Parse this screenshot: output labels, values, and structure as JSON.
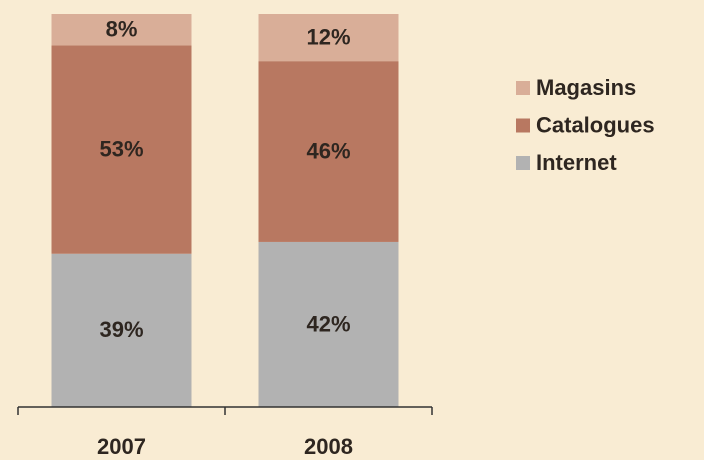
{
  "chart_data": {
    "type": "stacked_bar",
    "categories": [
      "2007",
      "2008"
    ],
    "series": [
      {
        "name": "Internet",
        "color": "#b2b2b2",
        "values": [
          39,
          42
        ],
        "value_labels": [
          "39%",
          "42%"
        ]
      },
      {
        "name": "Catalogues",
        "color": "#b87861",
        "values": [
          53,
          46
        ],
        "value_labels": [
          "53%",
          "46%"
        ]
      },
      {
        "name": "Magasins",
        "color": "#d9ae98",
        "values": [
          8,
          12
        ],
        "value_labels": [
          "8%",
          "12%"
        ]
      }
    ],
    "ylim": [
      0,
      100
    ],
    "legend": "right"
  }
}
